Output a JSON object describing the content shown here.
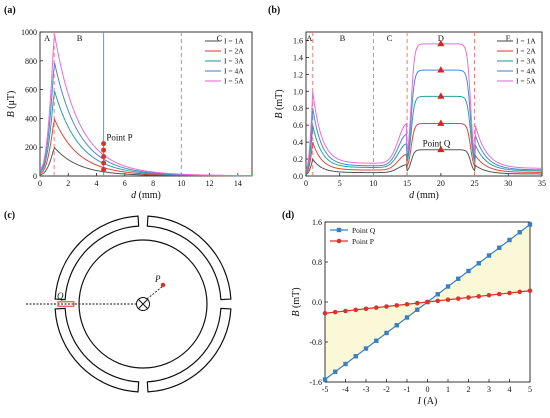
{
  "chart_data": [
    {
      "panel": "(a)",
      "type": "line",
      "xlabel_sym": "d",
      "xlabel_unit": " (mm)",
      "ylabel_sym": "B",
      "ylabel_unit": " (μT)",
      "xlim": [
        0,
        15
      ],
      "ylim": [
        0,
        1000
      ],
      "xticks": [
        0,
        2,
        4,
        6,
        8,
        10,
        12,
        14
      ],
      "yticks": [
        0,
        200,
        400,
        600,
        800,
        1000
      ],
      "regions": [
        {
          "label": "A",
          "x": 0.5
        },
        {
          "label": "B",
          "x": 2.8
        },
        {
          "label": "C",
          "x": 12.7
        }
      ],
      "boundaries": [
        1,
        10
      ],
      "marker_line_x": 4.5,
      "annotation": {
        "text": "Point P",
        "x": 4.7,
        "y": 245
      },
      "series": [
        {
          "name": "I = 1A",
          "color": "#555555",
          "peak": 200
        },
        {
          "name": "I = 2A",
          "color": "#e0463c",
          "peak": 400
        },
        {
          "name": "I = 3A",
          "color": "#2aa0a0",
          "peak": 600
        },
        {
          "name": "I = 4A",
          "color": "#4a88d8",
          "peak": 800
        },
        {
          "name": "I = 5A",
          "color": "#e56fd2",
          "peak": 1000
        }
      ],
      "markers": {
        "x": 4.5,
        "y": [
          45,
          90,
          135,
          180,
          225
        ]
      }
    },
    {
      "panel": "(b)",
      "type": "line",
      "xlabel_sym": "d",
      "xlabel_unit": " (mm)",
      "ylabel_sym": "B",
      "ylabel_unit": " (mT)",
      "xlim": [
        0,
        35
      ],
      "ylim": [
        0,
        1.7
      ],
      "xticks": [
        0,
        5,
        10,
        15,
        20,
        25,
        30,
        35
      ],
      "yticks": [
        0.0,
        0.2,
        0.4,
        0.6,
        0.8,
        1.0,
        1.2,
        1.4,
        1.6
      ],
      "regions": [
        {
          "label": "A",
          "x": 0.5
        },
        {
          "label": "B",
          "x": 5.4
        },
        {
          "label": "C",
          "x": 12.4
        },
        {
          "label": "D",
          "x": 20
        },
        {
          "label": "E",
          "x": 30
        }
      ],
      "boundaries": [
        1,
        10,
        15,
        25
      ],
      "annotation": {
        "text": "Point Q",
        "x": 17.3,
        "y": 0.35
      },
      "series": [
        {
          "name": "I = 1A",
          "color": "#555555",
          "plateau": 0.31,
          "peak": 0.2,
          "trough": 0.04
        },
        {
          "name": "I = 2A",
          "color": "#e0463c",
          "plateau": 0.62,
          "peak": 0.4,
          "trough": 0.07
        },
        {
          "name": "I = 3A",
          "color": "#2aa0a0",
          "plateau": 0.94,
          "peak": 0.6,
          "trough": 0.1
        },
        {
          "name": "I = 4A",
          "color": "#4a88d8",
          "plateau": 1.25,
          "peak": 0.8,
          "trough": 0.12
        },
        {
          "name": "I = 5A",
          "color": "#e56fd2",
          "plateau": 1.56,
          "peak": 1.0,
          "trough": 0.15
        }
      ],
      "markers": {
        "x": 20,
        "y": [
          0.31,
          0.62,
          0.94,
          1.25,
          1.56
        ]
      }
    },
    {
      "panel": "(c)",
      "type": "diagram",
      "labels": {
        "q": "Q",
        "p": "P"
      }
    },
    {
      "panel": "(d)",
      "type": "line",
      "xlabel_sym": "I",
      "xlabel_unit": " (A)",
      "ylabel_sym": "B",
      "ylabel_unit": " (mT)",
      "xlim": [
        -5,
        5
      ],
      "ylim": [
        -1.6,
        1.6
      ],
      "xticks": [
        -5,
        -4,
        -3,
        -2,
        -1,
        0,
        1,
        2,
        3,
        4,
        5
      ],
      "yticks": [
        -1.6,
        -0.8,
        0.0,
        0.8,
        1.6
      ],
      "x": [
        -5,
        -4.5,
        -4,
        -3.5,
        -3,
        -2.5,
        -2,
        -1.5,
        -1,
        -0.5,
        0,
        0.5,
        1,
        1.5,
        2,
        2.5,
        3,
        3.5,
        4,
        4.5,
        5
      ],
      "series": [
        {
          "name": "Point Q",
          "color": "#3a7fc2",
          "marker": "square",
          "slope": 0.31
        },
        {
          "name": "Point P",
          "color": "#d9342b",
          "marker": "circle",
          "slope": 0.045
        }
      ],
      "fill_color": "#fbf8d8"
    }
  ]
}
